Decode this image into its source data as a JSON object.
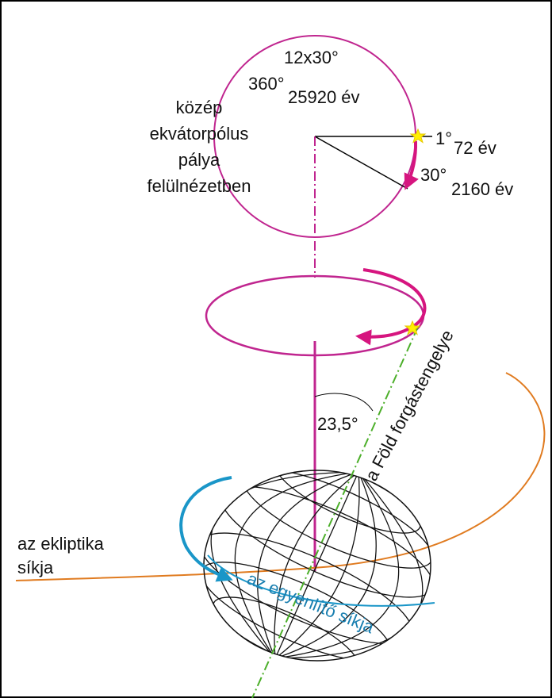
{
  "circle_labels": [
    "12x30°",
    "360°",
    "25920 év"
  ],
  "top_view_label": [
    "közép",
    "ekvátorpólus",
    "pálya",
    "felülnézetben"
  ],
  "markers": [
    {
      "degree": "1°",
      "years": "72 év"
    },
    {
      "degree": "30°",
      "years": "2160 év"
    }
  ],
  "axis_label": "a Föld forgástengelye",
  "angle_label": "23,5°",
  "ecliptic_label": [
    "az ekliptika",
    "síkja"
  ],
  "equator_label": "az egyenlítő síkja"
}
